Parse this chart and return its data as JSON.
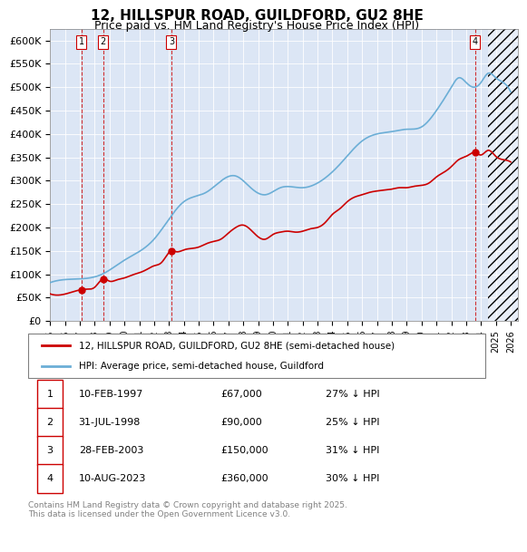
{
  "title": "12, HILLSPUR ROAD, GUILDFORD, GU2 8HE",
  "subtitle": "Price paid vs. HM Land Registry's House Price Index (HPI)",
  "ylim": [
    0,
    625000
  ],
  "yticks": [
    0,
    50000,
    100000,
    150000,
    200000,
    250000,
    300000,
    350000,
    400000,
    450000,
    500000,
    550000,
    600000
  ],
  "ytick_labels": [
    "£0",
    "£50K",
    "£100K",
    "£150K",
    "£200K",
    "£250K",
    "£300K",
    "£350K",
    "£400K",
    "£450K",
    "£500K",
    "£550K",
    "£600K"
  ],
  "xlim_start": 1995.0,
  "xlim_end": 2026.5,
  "background_color": "#dce6f5",
  "plot_bg_color": "#dce6f5",
  "hpi_color": "#6baed6",
  "price_color": "#cc0000",
  "sale_marker_color": "#cc0000",
  "vline_color": "#cc0000",
  "transactions": [
    {
      "num": 1,
      "date_label": "10-FEB-1997",
      "year": 1997.12,
      "price": 67000,
      "pct": "27% ↓ HPI"
    },
    {
      "num": 2,
      "date_label": "31-JUL-1998",
      "year": 1998.58,
      "price": 90000,
      "pct": "25% ↓ HPI"
    },
    {
      "num": 3,
      "date_label": "28-FEB-2003",
      "year": 2003.16,
      "price": 150000,
      "pct": "31% ↓ HPI"
    },
    {
      "num": 4,
      "date_label": "10-AUG-2023",
      "year": 2023.61,
      "price": 360000,
      "pct": "30% ↓ HPI"
    }
  ],
  "legend_label_price": "12, HILLSPUR ROAD, GUILDFORD, GU2 8HE (semi-detached house)",
  "legend_label_hpi": "HPI: Average price, semi-detached house, Guildford",
  "footnote": "Contains HM Land Registry data © Crown copyright and database right 2025.\nThis data is licensed under the Open Government Licence v3.0.",
  "xtick_years": [
    1995,
    1996,
    1997,
    1998,
    1999,
    2000,
    2001,
    2002,
    2003,
    2004,
    2005,
    2006,
    2007,
    2008,
    2009,
    2010,
    2011,
    2012,
    2013,
    2014,
    2015,
    2016,
    2017,
    2018,
    2019,
    2020,
    2021,
    2022,
    2023,
    2024,
    2025,
    2026
  ]
}
